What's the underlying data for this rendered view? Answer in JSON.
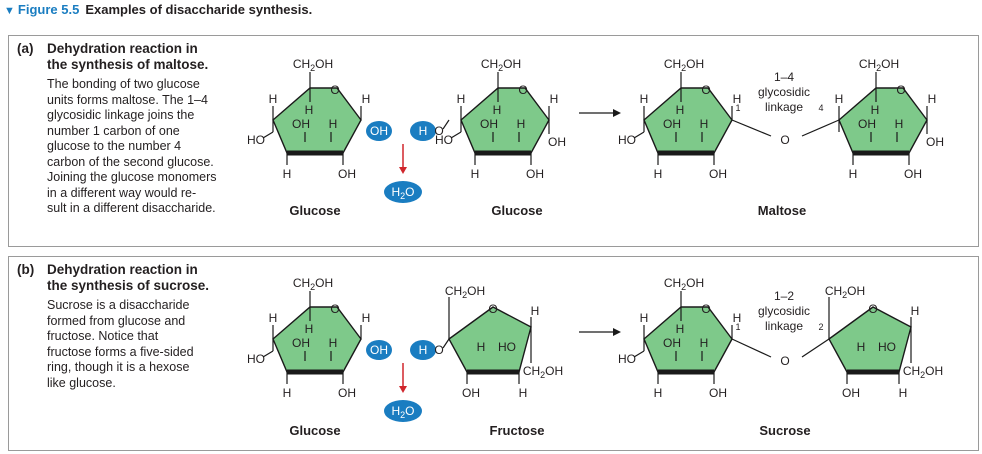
{
  "figure": {
    "title_icon": "chevron-down-icon",
    "number": "Figure 5.5",
    "title": "Examples of disaccharide synthesis."
  },
  "colors": {
    "ring_fill": "#7ec98a",
    "ring_stroke": "#1a1a1a",
    "ion_fill": "#1a7dc1",
    "arrow_red": "#d0262c",
    "accent_blue": "#1a7dc1"
  },
  "atoms": {
    "H": "H",
    "HO": "HO",
    "OH": "OH",
    "O": "O",
    "ch2oh_main": "CH",
    "ch2oh_sub": "2",
    "ch2oh_tail": "OH",
    "h2o_main": "H",
    "h2o_sub": "2",
    "h2o_tail": "O"
  },
  "panel_a": {
    "label": "(a)",
    "heading_line1": "Dehydration reaction in",
    "heading_line2": "the synthesis of maltose.",
    "body_lines": [
      "The bonding of two glucose",
      "units forms maltose. The 1–4",
      "glycosidic linkage joins the",
      "number 1 carbon of one",
      "glucose to the number 4",
      "carbon of the second glucose.",
      "Joining the glucose monomers",
      "in a different way would re-",
      "sult in a different disaccharide."
    ],
    "captions": [
      "Glucose",
      "Glucose",
      "Maltose"
    ],
    "linkage_line1": "1–4",
    "linkage_line2": "glycosidic",
    "linkage_line3": "linkage",
    "carbon_left": "1",
    "carbon_right": "4"
  },
  "panel_b": {
    "label": "(b)",
    "heading_line1": "Dehydration reaction in",
    "heading_line2": "the synthesis of sucrose.",
    "body_lines": [
      "Sucrose is a disaccharide",
      "formed from glucose and",
      "fructose. Notice that",
      "fructose forms a five-sided",
      "ring, though it is a hexose",
      "like glucose."
    ],
    "captions": [
      "Glucose",
      "Fructose",
      "Sucrose"
    ],
    "linkage_line1": "1–2",
    "linkage_line2": "glycosidic",
    "linkage_line3": "linkage",
    "carbon_left": "1",
    "carbon_right": "2"
  }
}
